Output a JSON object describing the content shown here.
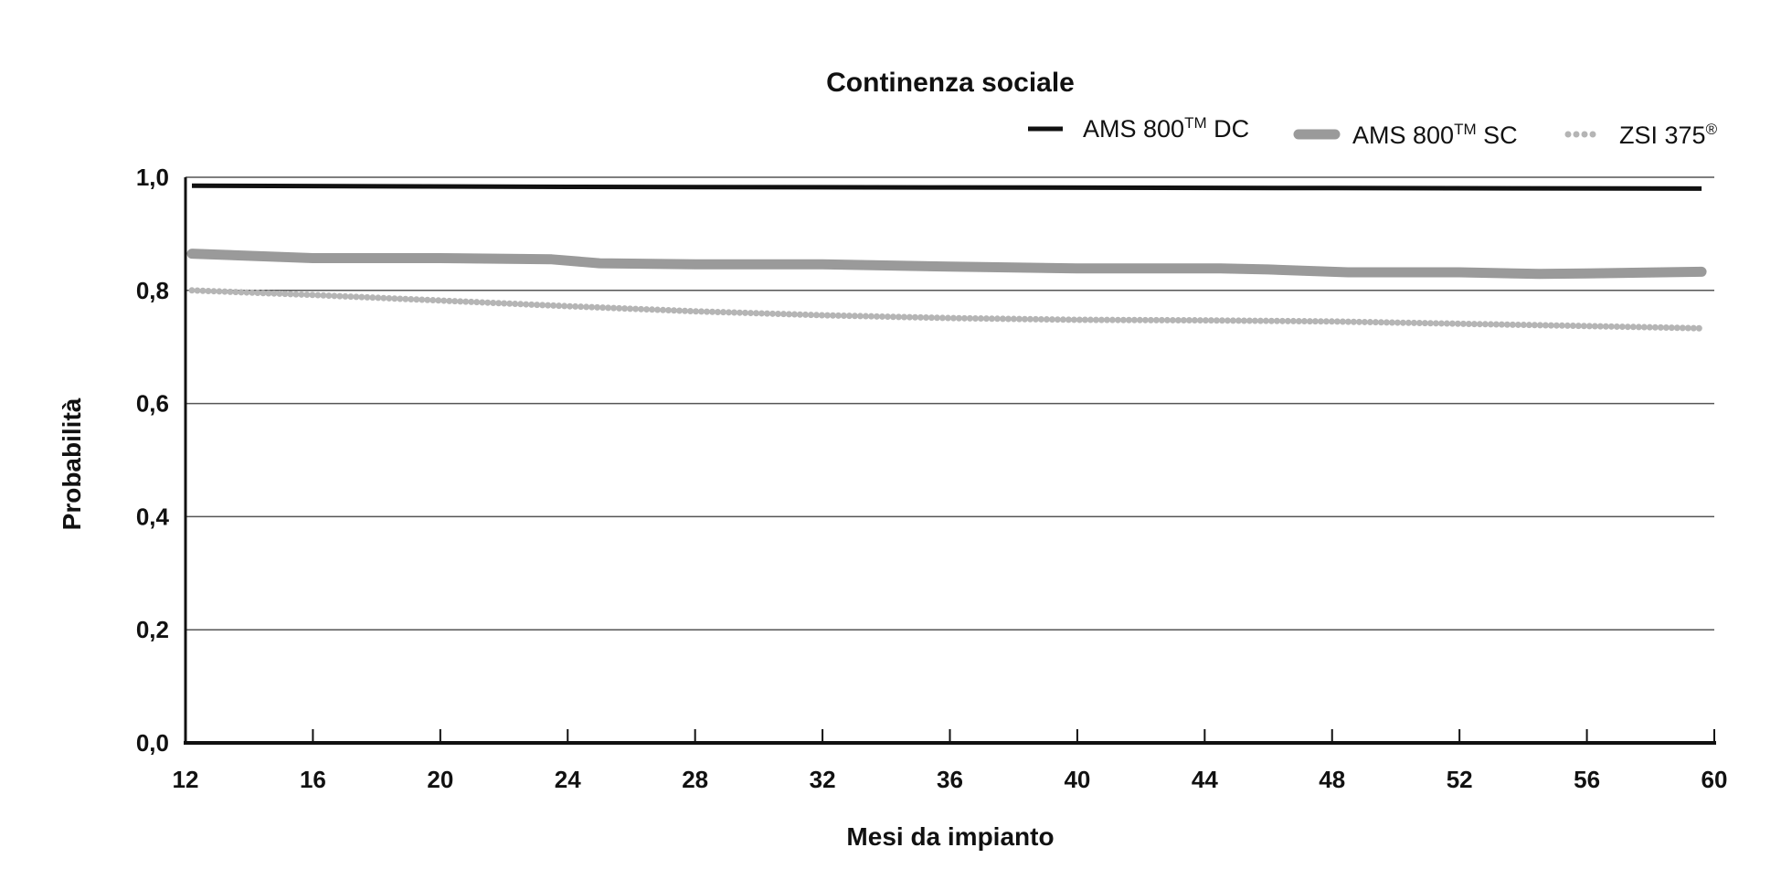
{
  "chart_data": {
    "type": "line",
    "title": "Continenza sociale",
    "xlabel": "Mesi da impianto",
    "ylabel": "Probabilità",
    "xlim": [
      12,
      60
    ],
    "ylim": [
      0,
      1
    ],
    "x_ticks": [
      12,
      16,
      20,
      24,
      28,
      32,
      36,
      40,
      44,
      48,
      52,
      56,
      60
    ],
    "y_ticks": [
      0.0,
      0.2,
      0.4,
      0.6,
      0.8,
      1.0
    ],
    "x_tick_labels": [
      "12",
      "16",
      "20",
      "24",
      "28",
      "32",
      "36",
      "40",
      "44",
      "48",
      "52",
      "56",
      "60"
    ],
    "y_tick_labels": [
      "0,0",
      "0,2",
      "0,4",
      "0,6",
      "0,8",
      "1,0"
    ],
    "grid": "horizontal",
    "legend_position": "top-right",
    "series": [
      {
        "name_main": "AMS 800",
        "name_sup": "TM",
        "name_tail": " DC",
        "color": "#111111",
        "style": "solid",
        "points": [
          [
            12.2,
            0.985
          ],
          [
            24,
            0.983
          ],
          [
            36,
            0.982
          ],
          [
            48,
            0.981
          ],
          [
            59.6,
            0.98
          ]
        ]
      },
      {
        "name_main": "AMS 800",
        "name_sup": "TM",
        "name_tail": " SC",
        "color": "#9a9a9a",
        "style": "thick",
        "points": [
          [
            12.2,
            0.865
          ],
          [
            16,
            0.857
          ],
          [
            20,
            0.857
          ],
          [
            23.5,
            0.855
          ],
          [
            25,
            0.848
          ],
          [
            28,
            0.846
          ],
          [
            32,
            0.846
          ],
          [
            36,
            0.842
          ],
          [
            40,
            0.839
          ],
          [
            44.5,
            0.839
          ],
          [
            46,
            0.837
          ],
          [
            48.5,
            0.832
          ],
          [
            52,
            0.832
          ],
          [
            54.5,
            0.829
          ],
          [
            56,
            0.83
          ],
          [
            59.6,
            0.833
          ]
        ]
      },
      {
        "name_main": "ZSI 375",
        "name_sup": "®",
        "name_tail": "",
        "color": "#b5b5b5",
        "style": "dotted",
        "points": [
          [
            12.2,
            0.8
          ],
          [
            16,
            0.792
          ],
          [
            20,
            0.782
          ],
          [
            24,
            0.772
          ],
          [
            28,
            0.763
          ],
          [
            32,
            0.756
          ],
          [
            36,
            0.751
          ],
          [
            40,
            0.748
          ],
          [
            44,
            0.747
          ],
          [
            48,
            0.745
          ],
          [
            52,
            0.741
          ],
          [
            56,
            0.737
          ],
          [
            59.6,
            0.733
          ]
        ]
      }
    ]
  }
}
